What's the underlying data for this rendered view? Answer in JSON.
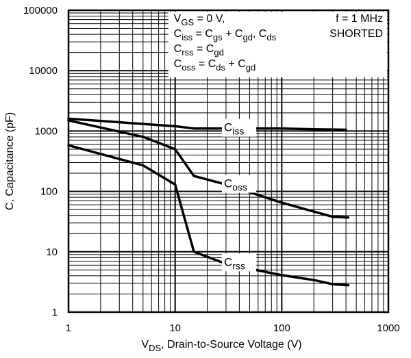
{
  "chart_data": {
    "type": "line",
    "x_scale": "log",
    "y_scale": "log",
    "xlim": [
      1,
      1000
    ],
    "ylim": [
      1,
      100000
    ],
    "grid": true,
    "x_ticks": [
      "1",
      "10",
      "100",
      "1000"
    ],
    "y_ticks": [
      "1",
      "10",
      "100",
      "1000",
      "10000",
      "100000"
    ],
    "xlabel": {
      "main": "V",
      "sub": "DS",
      "rest": ", Drain-to-Source Voltage (V)"
    },
    "ylabel": "C, Capacitance (pF)",
    "annotations": {
      "left": [
        [
          {
            "t": "V"
          },
          {
            "t": "GS",
            "sub": true
          },
          {
            "t": " = 0 V,"
          }
        ],
        [
          {
            "t": "C"
          },
          {
            "t": "iss",
            "sub": true
          },
          {
            "t": " = C"
          },
          {
            "t": "gs",
            "sub": true
          },
          {
            "t": " + C"
          },
          {
            "t": "gd",
            "sub": true
          },
          {
            "t": ", C"
          },
          {
            "t": "ds",
            "sub": true
          }
        ],
        [
          {
            "t": "C"
          },
          {
            "t": "rss",
            "sub": true
          },
          {
            "t": " = C"
          },
          {
            "t": "gd",
            "sub": true
          }
        ],
        [
          {
            "t": "C"
          },
          {
            "t": "oss",
            "sub": true
          },
          {
            "t": " = C"
          },
          {
            "t": "ds",
            "sub": true
          },
          {
            "t": " + C"
          },
          {
            "t": "gd",
            "sub": true
          }
        ]
      ],
      "right": [
        "f = 1 MHz",
        "SHORTED"
      ]
    },
    "series": [
      {
        "name": "Ciss",
        "label_main": "C",
        "label_sub": "iss",
        "label_at": [
          30,
          1100
        ],
        "points": [
          [
            1,
            1600
          ],
          [
            10,
            1200
          ],
          [
            15,
            1100
          ],
          [
            30,
            1100
          ],
          [
            100,
            1100
          ],
          [
            200,
            1070
          ],
          [
            400,
            1050
          ]
        ]
      },
      {
        "name": "Coss",
        "label_main": "C",
        "label_sub": "oss",
        "label_at": [
          30,
          130
        ],
        "points": [
          [
            1,
            1500
          ],
          [
            5,
            800
          ],
          [
            10,
            500
          ],
          [
            15,
            180
          ],
          [
            30,
            130
          ],
          [
            100,
            65
          ],
          [
            300,
            38
          ],
          [
            420,
            37
          ]
        ]
      },
      {
        "name": "Crss",
        "label_main": "C",
        "label_sub": "rss",
        "label_at": [
          30,
          6.5
        ],
        "points": [
          [
            1,
            580
          ],
          [
            5,
            270
          ],
          [
            10,
            130
          ],
          [
            15,
            10
          ],
          [
            30,
            6.3
          ],
          [
            100,
            4.1
          ],
          [
            200,
            3.4
          ],
          [
            300,
            2.9
          ],
          [
            420,
            2.8
          ]
        ]
      }
    ]
  }
}
